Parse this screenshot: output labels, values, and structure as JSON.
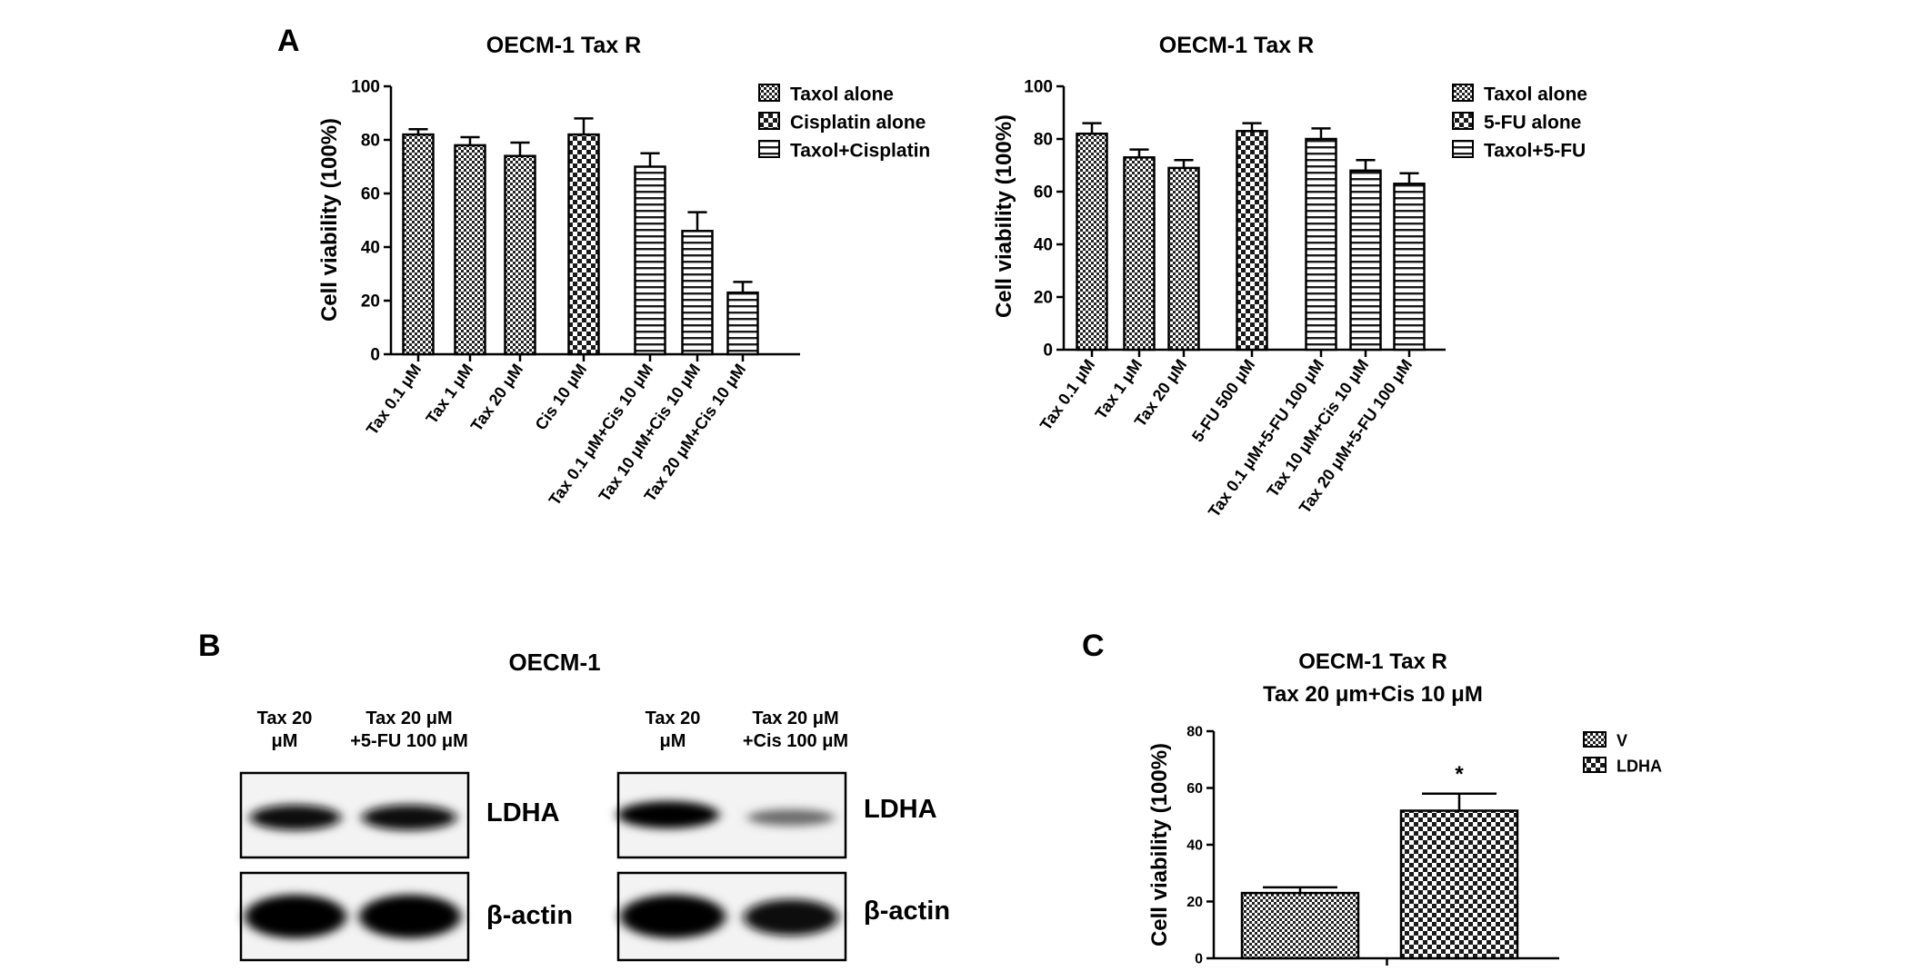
{
  "panel_labels": {
    "a": "A",
    "b": "B",
    "c": "C"
  },
  "colors": {
    "ink": "#111111",
    "band": "#0a0a0a",
    "blot_bg": "#f4f4f4",
    "axis": "#000000"
  },
  "chart_data": [
    {
      "id": "chartA1",
      "type": "bar",
      "title": "OECM-1 Tax R",
      "ylabel": "Cell viability (100%)",
      "xlabel": "",
      "ylim": [
        0,
        100
      ],
      "yticks": [
        0,
        20,
        40,
        60,
        80,
        100
      ],
      "legend_position": "top-right",
      "legend": [
        {
          "name": "Taxol alone",
          "pattern": "dense-check"
        },
        {
          "name": "Cisplatin alone",
          "pattern": "coarse-check"
        },
        {
          "name": "Taxol+Cisplatin",
          "pattern": "hstripe"
        }
      ],
      "categories": [
        "Tax  0.1 μM",
        "Tax 1 μM",
        "Tax  20 μM",
        "Cis 10 μM",
        "Tax 0.1 μM+Cis 10 μM",
        "Tax 10 μM+Cis 10 μM",
        "Tax 20 μM+Cis 10 μM"
      ],
      "values": [
        82,
        78,
        74,
        82,
        70,
        46,
        23
      ],
      "errors": [
        2,
        3,
        5,
        6,
        5,
        7,
        4
      ],
      "groups": [
        0,
        0,
        0,
        1,
        2,
        2,
        2
      ]
    },
    {
      "id": "chartA2",
      "type": "bar",
      "title": "OECM-1 Tax R",
      "ylabel": "Cell viability (100%)",
      "xlabel": "",
      "ylim": [
        0,
        100
      ],
      "yticks": [
        0,
        20,
        40,
        60,
        80,
        100
      ],
      "legend_position": "top-right",
      "legend": [
        {
          "name": "Taxol alone",
          "pattern": "dense-check"
        },
        {
          "name": "5-FU alone",
          "pattern": "coarse-check"
        },
        {
          "name": "Taxol+5-FU",
          "pattern": "hstripe"
        }
      ],
      "categories": [
        "Tax  0.1 μM",
        "Tax 1 μM",
        "Tax  20 μM",
        "5-FU 500 μM",
        "Tax 0.1 μM+5-FU 100 μM",
        "Tax 10 μM+Cis 10 μM",
        "Tax 20 μM+5-FU 100 μM"
      ],
      "values": [
        82,
        73,
        69,
        83,
        80,
        68,
        63
      ],
      "errors": [
        4,
        3,
        3,
        3,
        4,
        4,
        4
      ],
      "groups": [
        0,
        0,
        0,
        1,
        2,
        2,
        2
      ]
    },
    {
      "id": "chartC",
      "type": "bar",
      "title": "OECM-1 Tax R",
      "subtitle": "Tax 20 μm+Cis 10 μM",
      "ylabel": "Cell viability (100%)",
      "xlabel": "",
      "ylim": [
        0,
        80
      ],
      "yticks": [
        0,
        20,
        40,
        60,
        80
      ],
      "legend_position": "top-right",
      "legend": [
        {
          "name": "V",
          "pattern": "dense-check"
        },
        {
          "name": "LDHA",
          "pattern": "coarse-check"
        }
      ],
      "categories": [
        "V",
        "LDHA"
      ],
      "values": [
        23,
        52
      ],
      "errors": [
        2,
        6
      ],
      "annotations": [
        "",
        "*"
      ]
    }
  ],
  "blot": {
    "title": "OECM-1",
    "left": {
      "lane1": [
        "Tax 20",
        "μM"
      ],
      "lane2": [
        "Tax 20 μM",
        "+5-FU 100 μM"
      ],
      "ldha_intensity": [
        0.85,
        0.85
      ],
      "actin_intensity": [
        1,
        1
      ]
    },
    "right": {
      "lane1": [
        "Tax 20",
        "μM"
      ],
      "lane2": [
        "Tax 20 μM",
        "+Cis 100 μM"
      ],
      "ldha_intensity": [
        0.95,
        0.45
      ],
      "actin_intensity": [
        1,
        0.9
      ]
    },
    "labels": {
      "ldha": "LDHA",
      "actin": "β-actin"
    }
  }
}
